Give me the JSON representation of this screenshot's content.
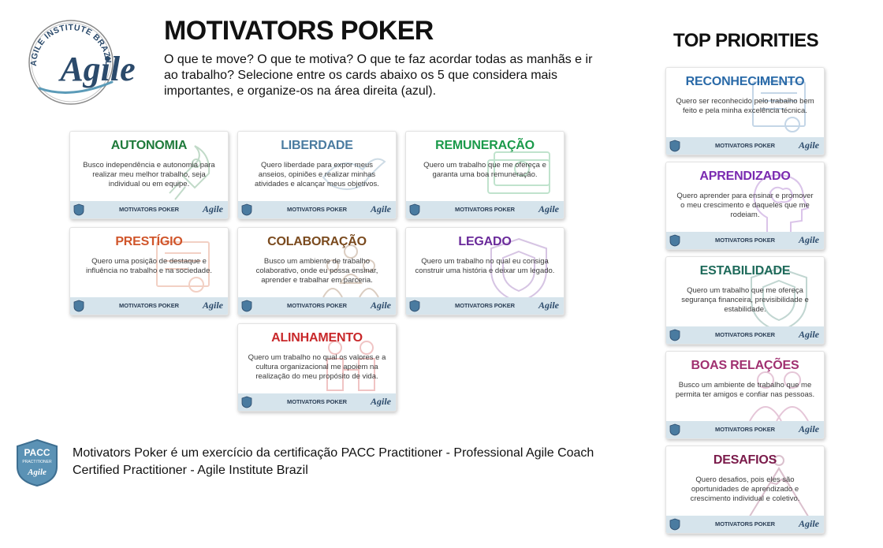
{
  "logo": {
    "ring_text": "AGILE INSTITUTE BRAZIL",
    "wordmark": "Agile",
    "primary_color": "#2b4a6b",
    "accent_color": "#5b9bb8"
  },
  "header": {
    "title": "MOTIVATORS POKER",
    "intro": "O que te move? O que te motiva? O que te faz acordar todas as manhãs e ir ao trabalho? Selecione entre os cards abaixo os 5 que considera mais importantes, e organize-os na área direita (azul)."
  },
  "card_footer": {
    "label": "MOTIVATORS POKER",
    "wordmark": "Agile"
  },
  "pool_cards": [
    {
      "id": "autonomia",
      "name": "AUTONOMIA",
      "description": "Busco independência e autonomia para realizar meu melhor trabalho, seja individual ou em equipe.",
      "color": "#1e7a3a",
      "icon": "rocket-icon"
    },
    {
      "id": "liberdade",
      "name": "LIBERDADE",
      "description": "Quero liberdade para expor meus anseios, opiniões e realizar minhas atividades e alcançar meus objetivos.",
      "color": "#4a7ba0",
      "icon": "bird-icon"
    },
    {
      "id": "remuneracao",
      "name": "REMUNERAÇÃO",
      "description": "Quero um trabalho que me ofereça e garanta uma boa remuneração.",
      "color": "#1a9a4a",
      "icon": "money-icon"
    },
    {
      "id": "prestigio",
      "name": "PRESTÍGIO",
      "description": "Quero uma posição de destaque e influência no trabalho e na sociedade.",
      "color": "#d0552a",
      "icon": "certificate-icon"
    },
    {
      "id": "colaboracao",
      "name": "COLABORAÇÃO",
      "description": "Busco um ambiente de trabalho colaborativo, onde eu possa ensinar, aprender e trabalhar em parceria.",
      "color": "#7a4a1e",
      "icon": "team-icon"
    },
    {
      "id": "legado",
      "name": "LEGADO",
      "description": "Quero um trabalho no qual eu consiga construir uma história e deixar um legado.",
      "color": "#6a2a9a",
      "icon": "shield-icon"
    },
    {
      "id": "alinhamento",
      "name": "ALINHAMENTO",
      "description": "Quero um trabalho no qual os valores e a cultura organizacional me apoiem na realização do meu propósito de vida.",
      "color": "#c8282a",
      "icon": "people-align-icon"
    }
  ],
  "top_priorities": {
    "title": "TOP PRIORITIES",
    "cards": [
      {
        "id": "reconhecimento",
        "name": "RECONHECIMENTO",
        "description": "Quero ser reconhecido pelo trabalho bem feito e pela minha excelência técnica.",
        "color": "#2a6aa8",
        "icon": "certificate-icon"
      },
      {
        "id": "aprendizado",
        "name": "APRENDIZADO",
        "description": "Quero aprender para ensinar e promover o meu crescimento e daqueles que me rodeiam.",
        "color": "#7a2ab0",
        "icon": "head-brain-icon"
      },
      {
        "id": "estabilidade",
        "name": "ESTABILIDADE",
        "description": "Quero um trabalho que me ofereça segurança financeira, previsibilidade e estabilidade.",
        "color": "#1e6a5a",
        "icon": "shield-icon"
      },
      {
        "id": "boas_relacoes",
        "name": "BOAS RELAÇÕES",
        "description": "Busco um ambiente de trabalho que me permita ter amigos e confiar nas pessoas.",
        "color": "#a03070",
        "icon": "people-icon"
      },
      {
        "id": "desafios",
        "name": "DESAFIOS",
        "description": "Quero desafios, pois eles são oportunidades de aprendizado e crescimento individual e coletivo.",
        "color": "#7a1a4a",
        "icon": "mountain-icon"
      }
    ]
  },
  "pacc_badge": {
    "acronym": "PACC",
    "subtitle": "PRACTITIONER",
    "wordmark": "Agile",
    "color": "#5b92b5"
  },
  "footer": {
    "text": "Motivators Poker é um exercício da certificação PACC Practitioner - Professional Agile Coach Certified Practitioner - Agile Institute Brazil"
  }
}
